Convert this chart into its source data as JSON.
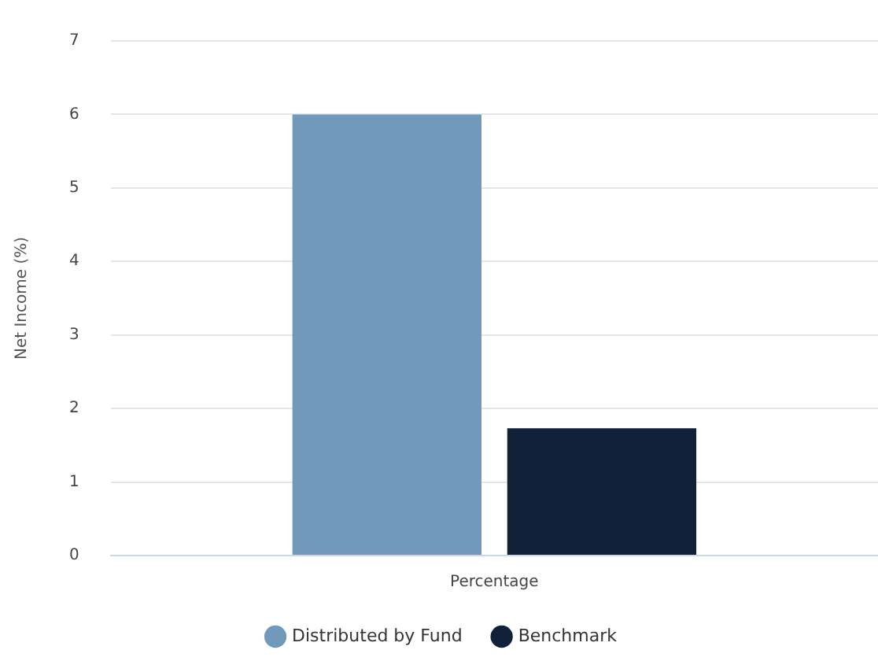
{
  "chart_data": {
    "type": "bar",
    "ylabel": "Net Income (%)",
    "categories": [
      "Percentage"
    ],
    "series": [
      {
        "name": "Distributed by Fund",
        "color": "#7199bb",
        "values": [
          6.0
        ]
      },
      {
        "name": "Benchmark",
        "color": "#12213a",
        "values": [
          1.73
        ]
      }
    ],
    "ylim": [
      0,
      7
    ],
    "yticks": [
      0,
      1,
      2,
      3,
      4,
      5,
      6,
      7
    ],
    "grid": "y",
    "legend": "bottom"
  }
}
